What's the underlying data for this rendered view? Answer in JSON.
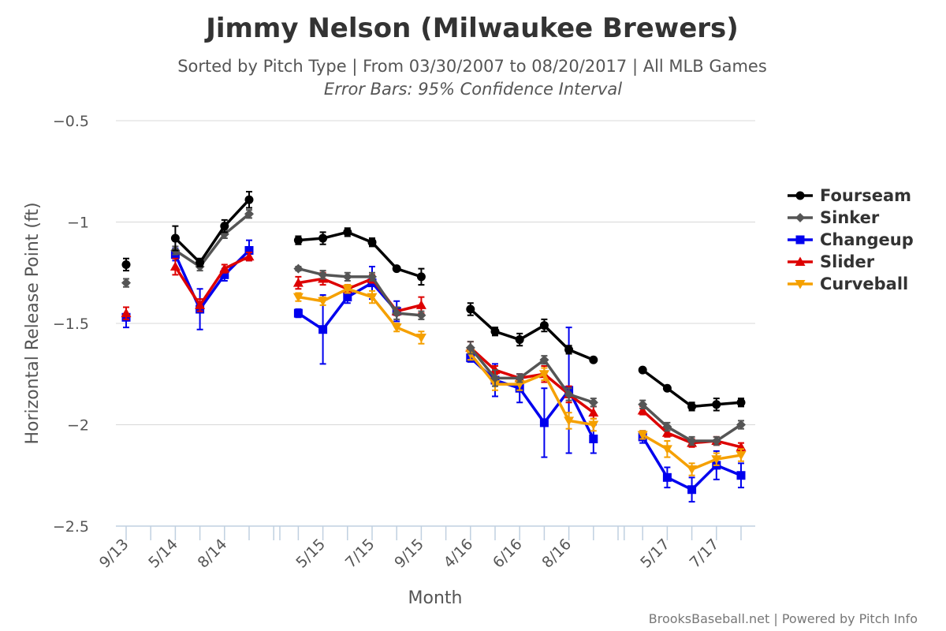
{
  "chart_data": {
    "type": "line",
    "title": "Jimmy Nelson (Milwaukee Brewers)",
    "subtitle": "Sorted by Pitch Type | From 03/30/2007 to 08/20/2017 | All MLB Games",
    "subtitle2": "Error Bars: 95% Confidence Interval",
    "xlabel": "Month",
    "ylabel": "Horizontal Release Point (ft)",
    "ylim": [
      -2.5,
      -0.5
    ],
    "yticks": [
      -0.5,
      -1,
      -1.5,
      -2,
      -2.5
    ],
    "ytick_labels": [
      "−0.5",
      "−1",
      "−1.5",
      "−2",
      "−2.5"
    ],
    "grid": true,
    "legend_position": "right",
    "credits": "BrooksBaseball.net | Powered by Pitch Info",
    "x_slots": 26,
    "x_ticks": [
      {
        "slot": 0,
        "label": "9/13"
      },
      {
        "slot": 2,
        "label": "5/14"
      },
      {
        "slot": 4,
        "label": "8/14"
      },
      {
        "slot": 8,
        "label": "5/15"
      },
      {
        "slot": 10,
        "label": "7/15"
      },
      {
        "slot": 12,
        "label": "9/15"
      },
      {
        "slot": 14,
        "label": "4/16"
      },
      {
        "slot": 16,
        "label": "6/16"
      },
      {
        "slot": 18,
        "label": "8/16"
      },
      {
        "slot": 22,
        "label": "5/17"
      },
      {
        "slot": 24,
        "label": "7/17"
      }
    ],
    "x_separators": [
      6.25,
      20.25
    ],
    "segments": [
      [
        0,
        0
      ],
      [
        2,
        5
      ],
      [
        7,
        12
      ],
      [
        14,
        19
      ],
      [
        21,
        25
      ]
    ],
    "series": [
      {
        "name": "Fourseam",
        "color": "#000000",
        "marker": "circle",
        "points": [
          {
            "x": 0,
            "y": -1.21,
            "err": 0.03
          },
          {
            "x": 2,
            "y": -1.08,
            "err": 0.06
          },
          {
            "x": 3,
            "y": -1.2,
            "err": 0.02
          },
          {
            "x": 4,
            "y": -1.02,
            "err": 0.03
          },
          {
            "x": 5,
            "y": -0.89,
            "err": 0.04
          },
          {
            "x": 7,
            "y": -1.09,
            "err": 0.02
          },
          {
            "x": 8,
            "y": -1.08,
            "err": 0.03
          },
          {
            "x": 9,
            "y": -1.05,
            "err": 0.02
          },
          {
            "x": 10,
            "y": -1.1,
            "err": 0.02
          },
          {
            "x": 11,
            "y": -1.23,
            "err": 0.01
          },
          {
            "x": 12,
            "y": -1.27,
            "err": 0.04
          },
          {
            "x": 14,
            "y": -1.43,
            "err": 0.03
          },
          {
            "x": 15,
            "y": -1.54,
            "err": 0.02
          },
          {
            "x": 16,
            "y": -1.58,
            "err": 0.03
          },
          {
            "x": 17,
            "y": -1.51,
            "err": 0.03
          },
          {
            "x": 18,
            "y": -1.63,
            "err": 0.02
          },
          {
            "x": 19,
            "y": -1.68,
            "err": 0.01
          },
          {
            "x": 21,
            "y": -1.73,
            "err": 0.01
          },
          {
            "x": 22,
            "y": -1.82,
            "err": 0.01
          },
          {
            "x": 23,
            "y": -1.91,
            "err": 0.02
          },
          {
            "x": 24,
            "y": -1.9,
            "err": 0.03
          },
          {
            "x": 25,
            "y": -1.89,
            "err": 0.02
          }
        ]
      },
      {
        "name": "Sinker",
        "color": "#555555",
        "marker": "diamond",
        "points": [
          {
            "x": 0,
            "y": -1.3,
            "err": 0.02
          },
          {
            "x": 2,
            "y": -1.14,
            "err": 0.02
          },
          {
            "x": 3,
            "y": -1.22,
            "err": 0.02
          },
          {
            "x": 4,
            "y": -1.06,
            "err": 0.02
          },
          {
            "x": 5,
            "y": -0.96,
            "err": 0.02
          },
          {
            "x": 7,
            "y": -1.23,
            "err": 0.01
          },
          {
            "x": 8,
            "y": -1.26,
            "err": 0.02
          },
          {
            "x": 9,
            "y": -1.27,
            "err": 0.02
          },
          {
            "x": 10,
            "y": -1.27,
            "err": 0.02
          },
          {
            "x": 11,
            "y": -1.45,
            "err": 0.03
          },
          {
            "x": 12,
            "y": -1.46,
            "err": 0.02
          },
          {
            "x": 14,
            "y": -1.62,
            "err": 0.03
          },
          {
            "x": 15,
            "y": -1.77,
            "err": 0.04
          },
          {
            "x": 16,
            "y": -1.77,
            "err": 0.02
          },
          {
            "x": 17,
            "y": -1.68,
            "err": 0.02
          },
          {
            "x": 18,
            "y": -1.85,
            "err": 0.03
          },
          {
            "x": 19,
            "y": -1.89,
            "err": 0.02
          },
          {
            "x": 21,
            "y": -1.9,
            "err": 0.02
          },
          {
            "x": 22,
            "y": -2.01,
            "err": 0.02
          },
          {
            "x": 23,
            "y": -2.08,
            "err": 0.02
          },
          {
            "x": 24,
            "y": -2.08,
            "err": 0.02
          },
          {
            "x": 25,
            "y": -2.0,
            "err": 0.02
          }
        ]
      },
      {
        "name": "Changeup",
        "color": "#0000ee",
        "marker": "square",
        "points": [
          {
            "x": 0,
            "y": -1.47,
            "err": 0.05
          },
          {
            "x": 2,
            "y": -1.16,
            "err": 0.03
          },
          {
            "x": 3,
            "y": -1.43,
            "err": 0.1
          },
          {
            "x": 4,
            "y": -1.26,
            "err": 0.03
          },
          {
            "x": 5,
            "y": -1.14,
            "err": 0.05
          },
          {
            "x": 7,
            "y": -1.45,
            "err": 0.02
          },
          {
            "x": 8,
            "y": -1.53,
            "err": 0.17
          },
          {
            "x": 9,
            "y": -1.37,
            "err": 0.03
          },
          {
            "x": 10,
            "y": -1.3,
            "err": 0.08
          },
          {
            "x": 11,
            "y": -1.44,
            "err": 0.05
          },
          {
            "x": 14,
            "y": -1.67,
            "err": 0.02
          },
          {
            "x": 15,
            "y": -1.78,
            "err": 0.08
          },
          {
            "x": 16,
            "y": -1.82,
            "err": 0.07
          },
          {
            "x": 17,
            "y": -1.99,
            "err": 0.17
          },
          {
            "x": 18,
            "y": -1.83,
            "err": 0.31
          },
          {
            "x": 19,
            "y": -2.07,
            "err": 0.07
          },
          {
            "x": 21,
            "y": -2.06,
            "err": 0.03
          },
          {
            "x": 22,
            "y": -2.26,
            "err": 0.05
          },
          {
            "x": 23,
            "y": -2.32,
            "err": 0.06
          },
          {
            "x": 24,
            "y": -2.2,
            "err": 0.07
          },
          {
            "x": 25,
            "y": -2.25,
            "err": 0.06
          }
        ]
      },
      {
        "name": "Slider",
        "color": "#dd0000",
        "marker": "triangle",
        "points": [
          {
            "x": 0,
            "y": -1.45,
            "err": 0.03
          },
          {
            "x": 2,
            "y": -1.22,
            "err": 0.04
          },
          {
            "x": 3,
            "y": -1.41,
            "err": 0.03
          },
          {
            "x": 4,
            "y": -1.23,
            "err": 0.02
          },
          {
            "x": 5,
            "y": -1.17,
            "err": 0.02
          },
          {
            "x": 7,
            "y": -1.3,
            "err": 0.03
          },
          {
            "x": 8,
            "y": -1.28,
            "err": 0.03
          },
          {
            "x": 9,
            "y": -1.33,
            "err": 0.02
          },
          {
            "x": 10,
            "y": -1.28,
            "err": 0.02
          },
          {
            "x": 11,
            "y": -1.44,
            "err": 0.02
          },
          {
            "x": 12,
            "y": -1.41,
            "err": 0.04
          },
          {
            "x": 14,
            "y": -1.62,
            "err": 0.03
          },
          {
            "x": 15,
            "y": -1.73,
            "err": 0.02
          },
          {
            "x": 16,
            "y": -1.77,
            "err": 0.02
          },
          {
            "x": 17,
            "y": -1.75,
            "err": 0.04
          },
          {
            "x": 18,
            "y": -1.85,
            "err": 0.04
          },
          {
            "x": 19,
            "y": -1.94,
            "err": 0.03
          },
          {
            "x": 21,
            "y": -1.93,
            "err": 0.02
          },
          {
            "x": 22,
            "y": -2.04,
            "err": 0.02
          },
          {
            "x": 23,
            "y": -2.09,
            "err": 0.02
          },
          {
            "x": 24,
            "y": -2.08,
            "err": 0.02
          },
          {
            "x": 25,
            "y": -2.11,
            "err": 0.02
          }
        ]
      },
      {
        "name": "Curveball",
        "color": "#f5a000",
        "marker": "triangle-down",
        "points": [
          {
            "x": 7,
            "y": -1.37,
            "err": 0.02
          },
          {
            "x": 8,
            "y": -1.39,
            "err": 0.02
          },
          {
            "x": 9,
            "y": -1.33,
            "err": 0.02
          },
          {
            "x": 10,
            "y": -1.37,
            "err": 0.03
          },
          {
            "x": 11,
            "y": -1.52,
            "err": 0.02
          },
          {
            "x": 12,
            "y": -1.57,
            "err": 0.03
          },
          {
            "x": 14,
            "y": -1.65,
            "err": 0.03
          },
          {
            "x": 15,
            "y": -1.8,
            "err": 0.03
          },
          {
            "x": 16,
            "y": -1.8,
            "err": 0.03
          },
          {
            "x": 17,
            "y": -1.75,
            "err": 0.03
          },
          {
            "x": 18,
            "y": -1.98,
            "err": 0.04
          },
          {
            "x": 19,
            "y": -2.0,
            "err": 0.03
          },
          {
            "x": 21,
            "y": -2.05,
            "err": 0.02
          },
          {
            "x": 22,
            "y": -2.12,
            "err": 0.04
          },
          {
            "x": 23,
            "y": -2.22,
            "err": 0.03
          },
          {
            "x": 24,
            "y": -2.17,
            "err": 0.03
          },
          {
            "x": 25,
            "y": -2.15,
            "err": 0.03
          }
        ]
      }
    ]
  }
}
